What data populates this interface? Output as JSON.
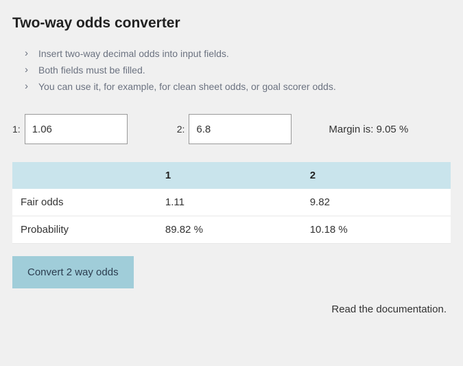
{
  "title": "Two-way odds converter",
  "instructions": [
    "Insert two-way decimal odds into input fields.",
    "Both fields must be filled.",
    "You can use it, for example, for clean sheet odds, or goal scorer odds."
  ],
  "inputs": {
    "label1": "1:",
    "value1": "1.06",
    "label2": "2:",
    "value2": "6.8"
  },
  "margin": {
    "label": "Margin is:",
    "value": "9.05 %"
  },
  "table": {
    "headers": {
      "blank": "",
      "col1": "1",
      "col2": "2"
    },
    "rows": [
      {
        "label": "Fair odds",
        "v1": "1.11",
        "v2": "9.82"
      },
      {
        "label": "Probability",
        "v1": "89.82 %",
        "v2": "10.18 %"
      }
    ]
  },
  "button": "Convert 2 way odds",
  "doc_link": "Read the documentation."
}
